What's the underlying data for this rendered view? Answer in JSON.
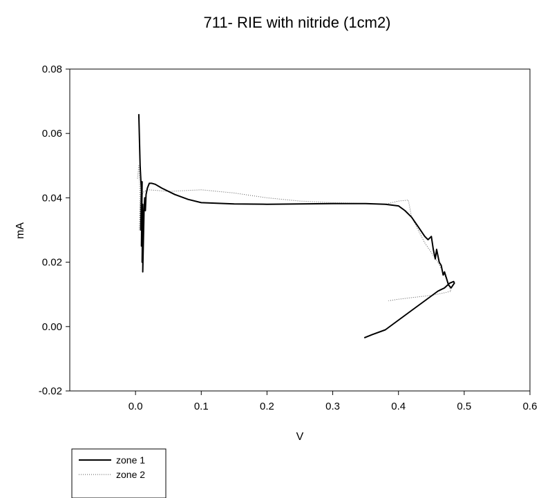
{
  "chart_data": {
    "type": "line",
    "title": "711- RIE with nitride (1cm2)",
    "xlabel": "V",
    "ylabel": "mA",
    "xlim": [
      -0.1,
      0.6
    ],
    "ylim": [
      -0.02,
      0.08
    ],
    "xticks": [
      "0.0",
      "0.1",
      "0.2",
      "0.3",
      "0.4",
      "0.5",
      "0.6"
    ],
    "yticks": [
      "-0.02",
      "0.00",
      "0.02",
      "0.04",
      "0.06",
      "0.08"
    ],
    "grid": false,
    "legend": "bottom-left outside",
    "series": [
      {
        "name": "zone 1",
        "style": "solid",
        "color": "#000000",
        "x": [
          0.005,
          0.007,
          0.009,
          0.008,
          0.01,
          0.009,
          0.011,
          0.01,
          0.012,
          0.011,
          0.013,
          0.014,
          0.015,
          0.016,
          0.018,
          0.021,
          0.025,
          0.03,
          0.04,
          0.06,
          0.08,
          0.1,
          0.15,
          0.2,
          0.25,
          0.3,
          0.35,
          0.38,
          0.4,
          0.41,
          0.42,
          0.43,
          0.44,
          0.445,
          0.45,
          0.453,
          0.456,
          0.458,
          0.46,
          0.462,
          0.465,
          0.468,
          0.47,
          0.473,
          0.476,
          0.48,
          0.485,
          0.484,
          0.478,
          0.47,
          0.46,
          0.44,
          0.42,
          0.4,
          0.38,
          0.36,
          0.348
        ],
        "y": [
          0.066,
          0.05,
          0.042,
          0.03,
          0.045,
          0.025,
          0.038,
          0.02,
          0.035,
          0.017,
          0.036,
          0.04,
          0.036,
          0.041,
          0.043,
          0.0445,
          0.0445,
          0.0442,
          0.043,
          0.041,
          0.0395,
          0.0385,
          0.0381,
          0.038,
          0.0381,
          0.0382,
          0.0382,
          0.038,
          0.0375,
          0.036,
          0.034,
          0.031,
          0.028,
          0.027,
          0.028,
          0.024,
          0.021,
          0.024,
          0.022,
          0.02,
          0.019,
          0.016,
          0.017,
          0.015,
          0.013,
          0.012,
          0.0135,
          0.014,
          0.0135,
          0.012,
          0.011,
          0.008,
          0.005,
          0.002,
          -0.001,
          -0.0025,
          -0.0035
        ]
      },
      {
        "name": "zone 2",
        "style": "dotted",
        "color": "#555555",
        "x": [
          0.003,
          0.005,
          0.007,
          0.006,
          0.008,
          0.01,
          0.013,
          0.02,
          0.05,
          0.1,
          0.15,
          0.2,
          0.25,
          0.3,
          0.35,
          0.38,
          0.4,
          0.415,
          0.42,
          0.44,
          0.46,
          0.47,
          0.475,
          0.478,
          0.48,
          0.47,
          0.45,
          0.42,
          0.4,
          0.385
        ],
        "y": [
          0.046,
          0.05,
          0.04,
          0.03,
          0.043,
          0.041,
          0.042,
          0.0425,
          0.042,
          0.0425,
          0.0415,
          0.04,
          0.039,
          0.0385,
          0.0382,
          0.038,
          0.039,
          0.0393,
          0.034,
          0.026,
          0.02,
          0.016,
          0.014,
          0.012,
          0.011,
          0.0105,
          0.0097,
          0.009,
          0.0085,
          0.008
        ]
      }
    ]
  }
}
